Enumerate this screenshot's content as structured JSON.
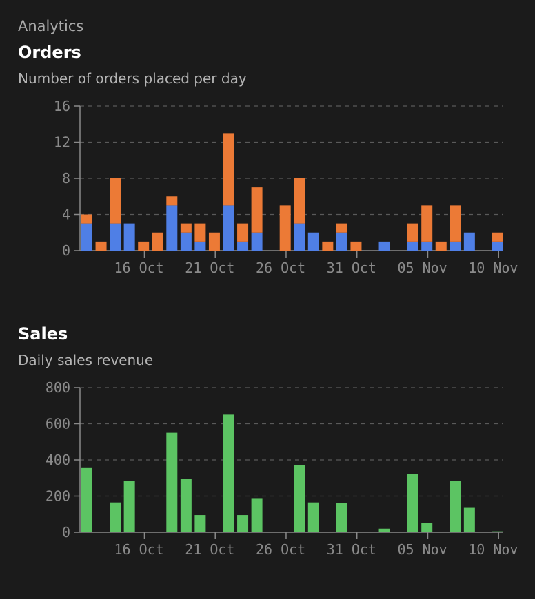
{
  "page": {
    "breadcrumb": "Analytics",
    "orders_title": "Orders",
    "orders_subtitle": "Number of orders placed per day",
    "sales_title": "Sales",
    "sales_subtitle": "Daily sales revenue"
  },
  "colors": {
    "background": "#1b1b1b",
    "grid": "#5a5a5a",
    "axis": "#8a8a8a",
    "series_blue": "#4f7fe6",
    "series_orange": "#ec7a36",
    "series_green": "#5cc463"
  },
  "chart_data": [
    {
      "id": "orders",
      "type": "bar",
      "stacked": true,
      "title": "Orders",
      "subtitle": "Number of orders placed per day",
      "start_date": "2023-10-12",
      "end_date": "2023-11-11",
      "ylim": [
        0,
        16
      ],
      "yticks": [
        0,
        4,
        8,
        12,
        16
      ],
      "grid": true,
      "x_tick_labels": [
        "16 Oct",
        "21 Oct",
        "26 Oct",
        "31 Oct",
        "05 Nov",
        "10 Nov"
      ],
      "series": [
        {
          "name": "Blue",
          "color": "#4f7fe6",
          "values": [
            3,
            0,
            3,
            3,
            0,
            0,
            5,
            2,
            1,
            0,
            5,
            1,
            2,
            0,
            0,
            3,
            2,
            0,
            2,
            0,
            0,
            1,
            0,
            1,
            1,
            0,
            1,
            2,
            0,
            1
          ]
        },
        {
          "name": "Orange",
          "color": "#ec7a36",
          "values": [
            1,
            1,
            5,
            0,
            1,
            2,
            1,
            1,
            2,
            2,
            8,
            2,
            5,
            0,
            5,
            5,
            0,
            1,
            1,
            1,
            0,
            0,
            0,
            2,
            4,
            1,
            4,
            0,
            0,
            1
          ]
        }
      ]
    },
    {
      "id": "sales",
      "type": "bar",
      "title": "Sales",
      "subtitle": "Daily sales revenue",
      "start_date": "2023-10-12",
      "end_date": "2023-11-11",
      "ylim": [
        0,
        800
      ],
      "yticks": [
        0,
        200,
        400,
        600,
        800
      ],
      "grid": true,
      "x_tick_labels": [
        "16 Oct",
        "21 Oct",
        "26 Oct",
        "31 Oct",
        "05 Nov",
        "10 Nov"
      ],
      "series": [
        {
          "name": "Revenue",
          "color": "#5cc463",
          "values": [
            355,
            0,
            165,
            285,
            0,
            0,
            550,
            295,
            95,
            0,
            650,
            95,
            185,
            0,
            0,
            370,
            165,
            0,
            160,
            0,
            0,
            20,
            0,
            320,
            50,
            0,
            285,
            135,
            0,
            5
          ]
        }
      ]
    }
  ]
}
